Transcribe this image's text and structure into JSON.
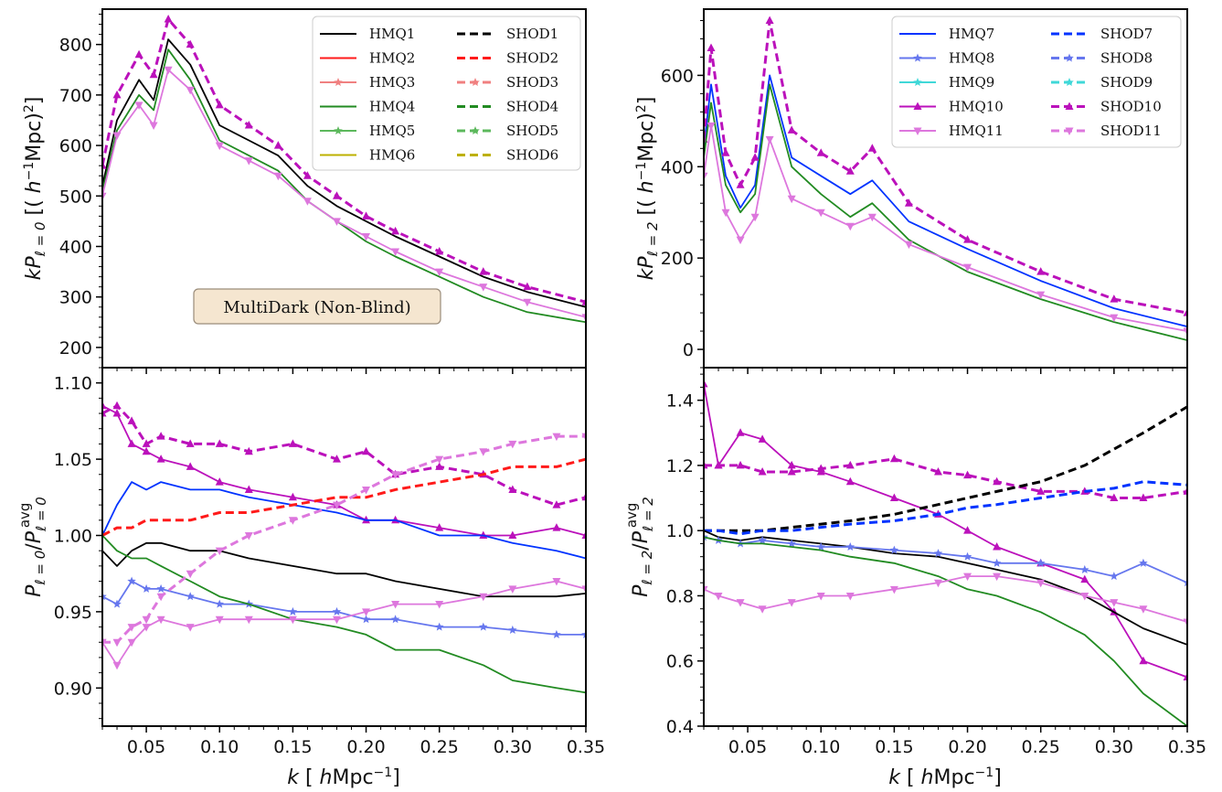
{
  "x_tick_labels": [
    "0.05",
    "0.10",
    "0.15",
    "0.20",
    "0.25",
    "0.30",
    "0.35"
  ],
  "x_axis_label": "k [hMpc⁻¹]",
  "annotation": "MultiDark (Non-Blind)",
  "panels": [
    {
      "id": "top-left",
      "ylabel": "kP_{ℓ=0} [(h⁻¹Mpc)²]",
      "ylim": [
        160,
        870
      ],
      "yticks": [
        "200",
        "300",
        "400",
        "500",
        "600",
        "700",
        "800"
      ]
    },
    {
      "id": "bottom-left",
      "ylabel": "P_{ℓ=0}/P^{avg}_{ℓ=0}",
      "ylim": [
        0.875,
        1.11
      ],
      "yticks": [
        "0.90",
        "0.95",
        "1.00",
        "1.05",
        "1.10"
      ]
    },
    {
      "id": "top-right",
      "ylabel": "kP_{ℓ=2} [(h⁻¹Mpc)²]",
      "ylim": [
        -40,
        745
      ],
      "yticks": [
        "0",
        "200",
        "400",
        "600"
      ]
    },
    {
      "id": "bottom-right",
      "ylabel": "P_{ℓ=2}/P^{avg}_{ℓ=2}",
      "ylim": [
        0.4,
        1.5
      ],
      "yticks": [
        "0.4",
        "0.6",
        "0.8",
        "1.0",
        "1.2",
        "1.4"
      ]
    }
  ],
  "legend_left": [
    {
      "label": "HMQ1",
      "color": "#000000",
      "dash": false,
      "marker": ""
    },
    {
      "label": "SHOD1",
      "color": "#000000",
      "dash": true,
      "marker": ""
    },
    {
      "label": "HMQ2",
      "color": "#ff1a1a",
      "dash": false,
      "marker": ""
    },
    {
      "label": "SHOD2",
      "color": "#ff1a1a",
      "dash": true,
      "marker": ""
    },
    {
      "label": "HMQ3",
      "color": "#f08080",
      "dash": false,
      "marker": "star"
    },
    {
      "label": "SHOD3",
      "color": "#f08080",
      "dash": true,
      "marker": "star"
    },
    {
      "label": "HMQ4",
      "color": "#228b22",
      "dash": false,
      "marker": ""
    },
    {
      "label": "SHOD4",
      "color": "#228b22",
      "dash": true,
      "marker": ""
    },
    {
      "label": "HMQ5",
      "color": "#5cb85c",
      "dash": false,
      "marker": "star"
    },
    {
      "label": "SHOD5",
      "color": "#5cb85c",
      "dash": true,
      "marker": "star"
    },
    {
      "label": "HMQ6",
      "color": "#bdb000",
      "dash": false,
      "marker": ""
    },
    {
      "label": "SHOD6",
      "color": "#bdb000",
      "dash": true,
      "marker": ""
    }
  ],
  "legend_right": [
    {
      "label": "HMQ7",
      "color": "#0033ff",
      "dash": false,
      "marker": ""
    },
    {
      "label": "SHOD7",
      "color": "#0033ff",
      "dash": true,
      "marker": ""
    },
    {
      "label": "HMQ8",
      "color": "#6677ee",
      "dash": false,
      "marker": "star"
    },
    {
      "label": "SHOD8",
      "color": "#6677ee",
      "dash": true,
      "marker": "star"
    },
    {
      "label": "HMQ9",
      "color": "#40d8d8",
      "dash": false,
      "marker": "star"
    },
    {
      "label": "SHOD9",
      "color": "#40d8d8",
      "dash": true,
      "marker": "star"
    },
    {
      "label": "HMQ10",
      "color": "#bb11bb",
      "dash": false,
      "marker": "tri-up"
    },
    {
      "label": "SHOD10",
      "color": "#bb11bb",
      "dash": true,
      "marker": "tri-up"
    },
    {
      "label": "HMQ11",
      "color": "#dd77dd",
      "dash": false,
      "marker": "tri-down"
    },
    {
      "label": "SHOD11",
      "color": "#dd77dd",
      "dash": true,
      "marker": "tri-down"
    }
  ],
  "chart_data": [
    {
      "type": "line",
      "panel": "top-left",
      "xlabel": "k [hMpc⁻¹]",
      "ylabel": "kP_{ℓ=0} [(h⁻¹Mpc)²]",
      "xlim": [
        0.02,
        0.35
      ],
      "ylim": [
        160,
        870
      ],
      "x": [
        0.02,
        0.03,
        0.045,
        0.055,
        0.065,
        0.08,
        0.1,
        0.12,
        0.14,
        0.16,
        0.18,
        0.2,
        0.22,
        0.25,
        0.28,
        0.31,
        0.35
      ],
      "series": [
        {
          "name": "HMQ1",
          "values": [
            520,
            650,
            730,
            690,
            810,
            760,
            640,
            610,
            580,
            520,
            480,
            450,
            420,
            380,
            340,
            310,
            280
          ]
        },
        {
          "name": "SHOD10",
          "values": [
            560,
            700,
            780,
            740,
            850,
            800,
            680,
            640,
            600,
            540,
            500,
            460,
            430,
            390,
            350,
            320,
            290
          ]
        },
        {
          "name": "HMQ4",
          "values": [
            510,
            630,
            700,
            670,
            790,
            730,
            610,
            580,
            550,
            490,
            450,
            410,
            380,
            340,
            300,
            270,
            250
          ]
        },
        {
          "name": "HMQ11",
          "values": [
            500,
            620,
            680,
            640,
            750,
            710,
            600,
            570,
            540,
            490,
            450,
            420,
            390,
            350,
            320,
            290,
            260
          ]
        }
      ]
    },
    {
      "type": "line",
      "panel": "top-right",
      "xlabel": "k [hMpc⁻¹]",
      "ylabel": "kP_{ℓ=2} [(h⁻¹Mpc)²]",
      "xlim": [
        0.02,
        0.35
      ],
      "ylim": [
        -40,
        745
      ],
      "x": [
        0.02,
        0.025,
        0.035,
        0.045,
        0.055,
        0.065,
        0.08,
        0.1,
        0.12,
        0.135,
        0.16,
        0.2,
        0.25,
        0.3,
        0.35
      ],
      "series": [
        {
          "name": "HMQ7",
          "values": [
            440,
            580,
            380,
            310,
            360,
            600,
            420,
            380,
            340,
            370,
            280,
            220,
            150,
            90,
            50
          ]
        },
        {
          "name": "SHOD10",
          "values": [
            460,
            660,
            430,
            360,
            420,
            720,
            480,
            430,
            390,
            440,
            320,
            240,
            170,
            110,
            80
          ]
        },
        {
          "name": "HMQ4",
          "values": [
            420,
            540,
            360,
            300,
            340,
            580,
            400,
            340,
            290,
            320,
            240,
            170,
            110,
            60,
            20
          ]
        },
        {
          "name": "HMQ11",
          "values": [
            380,
            490,
            300,
            240,
            290,
            460,
            330,
            300,
            270,
            290,
            230,
            180,
            120,
            70,
            40
          ]
        }
      ]
    },
    {
      "type": "line",
      "panel": "bottom-left",
      "xlabel": "k [hMpc⁻¹]",
      "ylabel": "P_{ℓ=0}/P^{avg}_{ℓ=0}",
      "xlim": [
        0.02,
        0.35
      ],
      "ylim": [
        0.875,
        1.11
      ],
      "x": [
        0.02,
        0.03,
        0.04,
        0.05,
        0.06,
        0.08,
        0.1,
        0.12,
        0.15,
        0.18,
        0.2,
        0.22,
        0.25,
        0.28,
        0.3,
        0.33,
        0.35
      ],
      "series": [
        {
          "name": "SHOD10",
          "values": [
            1.08,
            1.085,
            1.075,
            1.06,
            1.065,
            1.06,
            1.06,
            1.055,
            1.06,
            1.05,
            1.055,
            1.04,
            1.045,
            1.04,
            1.03,
            1.02,
            1.025
          ]
        },
        {
          "name": "HMQ10",
          "values": [
            1.085,
            1.08,
            1.06,
            1.055,
            1.05,
            1.045,
            1.035,
            1.03,
            1.025,
            1.02,
            1.01,
            1.01,
            1.005,
            1.0,
            1.0,
            1.005,
            1.0
          ]
        },
        {
          "name": "HMQ7",
          "values": [
            1.0,
            1.02,
            1.035,
            1.03,
            1.035,
            1.03,
            1.03,
            1.025,
            1.02,
            1.015,
            1.01,
            1.01,
            1.0,
            1.0,
            0.995,
            0.99,
            0.985
          ]
        },
        {
          "name": "SHOD2",
          "values": [
            1.0,
            1.005,
            1.005,
            1.01,
            1.01,
            1.01,
            1.015,
            1.015,
            1.02,
            1.025,
            1.025,
            1.03,
            1.035,
            1.04,
            1.045,
            1.045,
            1.05
          ]
        },
        {
          "name": "HMQ1",
          "values": [
            0.99,
            0.98,
            0.99,
            0.995,
            0.995,
            0.99,
            0.99,
            0.985,
            0.98,
            0.975,
            0.975,
            0.97,
            0.965,
            0.96,
            0.96,
            0.96,
            0.962
          ]
        },
        {
          "name": "HMQ8",
          "values": [
            0.96,
            0.955,
            0.97,
            0.965,
            0.965,
            0.96,
            0.955,
            0.955,
            0.95,
            0.95,
            0.945,
            0.945,
            0.94,
            0.94,
            0.938,
            0.935,
            0.935
          ]
        },
        {
          "name": "HMQ4",
          "values": [
            1.0,
            0.99,
            0.985,
            0.985,
            0.98,
            0.97,
            0.96,
            0.955,
            0.945,
            0.94,
            0.935,
            0.925,
            0.925,
            0.915,
            0.905,
            0.9,
            0.897
          ]
        },
        {
          "name": "HMQ11",
          "values": [
            0.93,
            0.915,
            0.93,
            0.94,
            0.945,
            0.94,
            0.945,
            0.945,
            0.945,
            0.945,
            0.95,
            0.955,
            0.955,
            0.96,
            0.965,
            0.97,
            0.965
          ]
        },
        {
          "name": "SHOD11",
          "values": [
            0.93,
            0.93,
            0.94,
            0.945,
            0.96,
            0.975,
            0.99,
            1.0,
            1.01,
            1.02,
            1.03,
            1.04,
            1.05,
            1.055,
            1.06,
            1.065,
            1.065
          ]
        }
      ]
    },
    {
      "type": "line",
      "panel": "bottom-right",
      "xlabel": "k [hMpc⁻¹]",
      "ylabel": "P_{ℓ=2}/P^{avg}_{ℓ=2}",
      "xlim": [
        0.02,
        0.35
      ],
      "ylim": [
        0.4,
        1.5
      ],
      "x": [
        0.02,
        0.03,
        0.045,
        0.06,
        0.08,
        0.1,
        0.12,
        0.15,
        0.18,
        0.2,
        0.22,
        0.25,
        0.28,
        0.3,
        0.32,
        0.35
      ],
      "series": [
        {
          "name": "HMQ10",
          "values": [
            1.45,
            1.2,
            1.3,
            1.28,
            1.2,
            1.18,
            1.15,
            1.1,
            1.05,
            1.0,
            0.95,
            0.9,
            0.85,
            0.75,
            0.6,
            0.55
          ]
        },
        {
          "name": "SHOD10",
          "values": [
            1.2,
            1.2,
            1.2,
            1.18,
            1.18,
            1.19,
            1.2,
            1.22,
            1.18,
            1.17,
            1.15,
            1.12,
            1.12,
            1.1,
            1.1,
            1.12
          ]
        },
        {
          "name": "SHOD1",
          "values": [
            1.0,
            1.0,
            1.0,
            1.0,
            1.01,
            1.02,
            1.03,
            1.05,
            1.08,
            1.1,
            1.12,
            1.15,
            1.2,
            1.25,
            1.3,
            1.38
          ]
        },
        {
          "name": "SHOD7",
          "values": [
            1.0,
            1.0,
            0.99,
            1.0,
            1.0,
            1.01,
            1.02,
            1.03,
            1.05,
            1.07,
            1.08,
            1.1,
            1.12,
            1.13,
            1.15,
            1.14
          ]
        },
        {
          "name": "HMQ1",
          "values": [
            1.0,
            0.98,
            0.97,
            0.98,
            0.97,
            0.96,
            0.95,
            0.93,
            0.92,
            0.9,
            0.88,
            0.85,
            0.8,
            0.75,
            0.7,
            0.65
          ]
        },
        {
          "name": "HMQ8",
          "values": [
            0.98,
            0.97,
            0.96,
            0.97,
            0.96,
            0.95,
            0.95,
            0.94,
            0.93,
            0.92,
            0.9,
            0.9,
            0.88,
            0.86,
            0.9,
            0.84
          ]
        },
        {
          "name": "HMQ4",
          "values": [
            0.98,
            0.97,
            0.96,
            0.96,
            0.95,
            0.94,
            0.92,
            0.9,
            0.86,
            0.82,
            0.8,
            0.75,
            0.68,
            0.6,
            0.5,
            0.4
          ]
        },
        {
          "name": "HMQ11",
          "values": [
            0.82,
            0.8,
            0.78,
            0.76,
            0.78,
            0.8,
            0.8,
            0.82,
            0.84,
            0.86,
            0.86,
            0.84,
            0.8,
            0.78,
            0.76,
            0.72
          ]
        }
      ]
    }
  ]
}
